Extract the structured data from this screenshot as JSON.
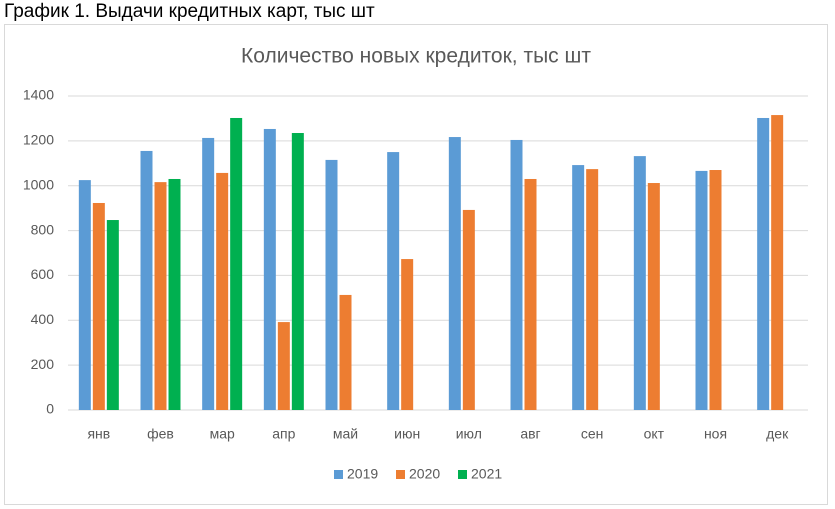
{
  "heading": "График 1. Выдачи кредитных карт, тыс шт",
  "chart_data": {
    "type": "bar",
    "title": "Количество новых кредиток, тыс шт",
    "categories": [
      "янв",
      "фев",
      "мар",
      "апр",
      "май",
      "июн",
      "июл",
      "авг",
      "сен",
      "окт",
      "ноя",
      "дек"
    ],
    "series": [
      {
        "name": "2019",
        "color": "#5b9bd5",
        "values": [
          1025,
          1155,
          1213,
          1253,
          1115,
          1150,
          1217,
          1204,
          1092,
          1132,
          1066,
          1302
        ]
      },
      {
        "name": "2020",
        "color": "#ed7d31",
        "values": [
          923,
          1016,
          1057,
          392,
          513,
          673,
          892,
          1030,
          1074,
          1012,
          1070,
          1315
        ]
      },
      {
        "name": "2021",
        "color": "#00b050",
        "values": [
          847,
          1030,
          1302,
          1235,
          null,
          null,
          null,
          null,
          null,
          null,
          null,
          null
        ]
      }
    ],
    "ylim": [
      0,
      1400
    ],
    "yticks": [
      0,
      200,
      400,
      600,
      800,
      1000,
      1200,
      1400
    ],
    "grid": true,
    "legend": "bottom"
  }
}
